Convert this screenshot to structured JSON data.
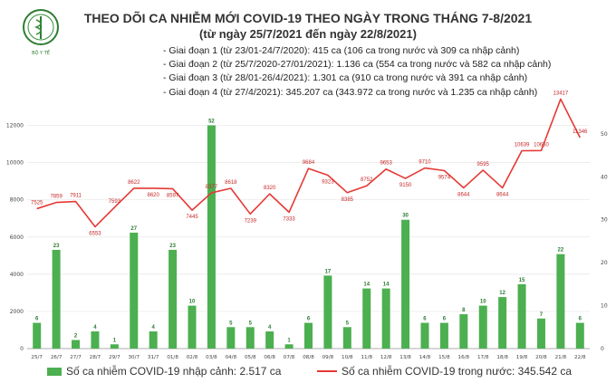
{
  "title": "THEO DÕI CA NHIỄM MỚI COVID-19 THEO NGÀY TRONG THÁNG 7-8/2021",
  "subtitle": "(từ ngày 25/7/2021 đến ngày 22/8/2021)",
  "logo_text": "BỘ Y TẾ",
  "phases": [
    "Giai đoạn 1 (từ 23/01-24/7/2020): 415 ca (106 ca trong nước và 309 ca nhập cảnh)",
    "Giai đoạn 2 (từ 25/7/2020-27/01/2021): 1.136 ca (554 ca trong nước và 582 ca nhập cảnh)",
    "Giai đoạn 3 (từ 28/01-26/4/2021): 1.301 ca (910 ca trong nước và 391 ca nhập cảnh)",
    "Giai đoạn 4 (từ 27/4/2021): 345.207 ca (343.972 ca trong nước và 1.235 ca nhập cảnh)"
  ],
  "colors": {
    "bars": "#4caf50",
    "line": "#e53935",
    "bar_labels": "#2e7d32",
    "line_labels": "#c62828"
  },
  "chart_data": {
    "type": "bar+line",
    "categories": [
      "25/7",
      "26/7",
      "27/7",
      "28/7",
      "29/7",
      "30/7",
      "31/7",
      "01/8",
      "02/8",
      "03/8",
      "04/8",
      "05/8",
      "06/8",
      "07/8",
      "08/8",
      "09/8",
      "10/8",
      "11/8",
      "12/8",
      "13/8",
      "14/8",
      "15/8",
      "16/8",
      "17/8",
      "18/8",
      "19/8",
      "20/8",
      "21/8",
      "22/8"
    ],
    "series": [
      {
        "name": "Số ca nhiễm COVID-19 nhập cảnh: 2.517 ca",
        "type": "bar",
        "axis": "right",
        "values": [
          6,
          23,
          2,
          4,
          1,
          27,
          4,
          23,
          10,
          52,
          5,
          5,
          4,
          1,
          6,
          17,
          5,
          14,
          14,
          30,
          6,
          6,
          8,
          10,
          12,
          15,
          7,
          22,
          6
        ]
      },
      {
        "name": "Số ca nhiễm COVID-19 trong nước: 345.542 ca",
        "type": "line",
        "axis": "left",
        "values": [
          7525,
          7859,
          7911,
          6553,
          7593,
          8622,
          8620,
          8597,
          7445,
          8377,
          8618,
          7239,
          8320,
          7333,
          9684,
          9323,
          8385,
          8752,
          9653,
          9150,
          9710,
          9574,
          8644,
          9595,
          8644,
          10639,
          10650,
          13417,
          11346
        ]
      }
    ],
    "left_axis": {
      "ticks": [
        "0",
        "2000",
        "4000",
        "6000",
        "8000",
        "10000",
        "12000"
      ],
      "ylim": [
        0,
        13000
      ]
    },
    "right_axis": {
      "ticks": [
        "0",
        "10",
        "20",
        "30",
        "40",
        "50"
      ],
      "ylim": [
        0,
        56.3
      ]
    },
    "legend": "bottom"
  }
}
